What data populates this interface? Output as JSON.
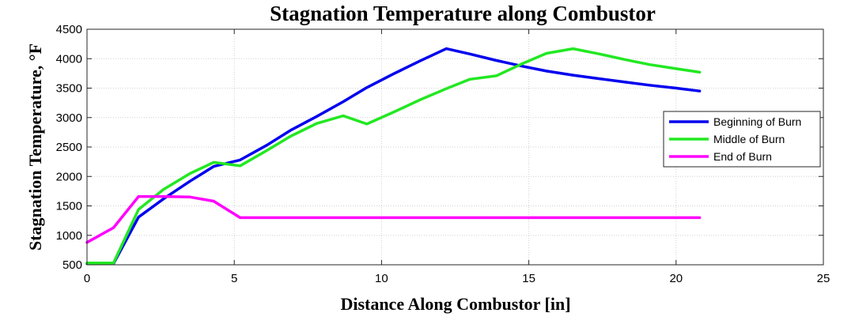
{
  "chart_data": {
    "type": "line",
    "title": "Stagnation Temperature along Combustor",
    "xlabel": "Distance Along Combustor [in]",
    "ylabel": "Stagnation Temperature, °F",
    "xlim": [
      0,
      25
    ],
    "ylim": [
      500,
      4500
    ],
    "xticks": [
      0,
      5,
      10,
      15,
      20,
      25
    ],
    "yticks": [
      500,
      1000,
      1500,
      2000,
      2500,
      3000,
      3500,
      4000,
      4500
    ],
    "grid": true,
    "legend_position": "right",
    "series": [
      {
        "name": "Beginning of Burn",
        "color": "#0000ee",
        "x": [
          0,
          0.9,
          1.75,
          2.6,
          3.5,
          4.3,
          5.2,
          6.1,
          6.9,
          7.8,
          8.7,
          9.5,
          10.4,
          11.3,
          12.2,
          13.0,
          13.9,
          14.8,
          15.6,
          16.5,
          17.4,
          18.3,
          19.1,
          20.0,
          20.8
        ],
        "y": [
          520,
          520,
          1310,
          1620,
          1920,
          2170,
          2280,
          2530,
          2780,
          3020,
          3270,
          3510,
          3740,
          3960,
          4170,
          4080,
          3970,
          3870,
          3790,
          3720,
          3660,
          3600,
          3550,
          3500,
          3450
        ]
      },
      {
        "name": "Middle of Burn",
        "color": "#22e822",
        "x": [
          0,
          0.9,
          1.75,
          2.6,
          3.5,
          4.3,
          5.2,
          6.1,
          6.9,
          7.8,
          8.7,
          9.5,
          10.4,
          11.3,
          12.2,
          13.0,
          13.9,
          14.8,
          15.6,
          16.5,
          17.4,
          18.3,
          19.1,
          20.0,
          20.8
        ],
        "y": [
          530,
          530,
          1440,
          1780,
          2050,
          2240,
          2180,
          2440,
          2680,
          2900,
          3030,
          2890,
          3090,
          3300,
          3490,
          3650,
          3710,
          3920,
          4090,
          4170,
          4080,
          3980,
          3900,
          3830,
          3770
        ]
      },
      {
        "name": "End of Burn",
        "color": "#ff00ff",
        "x": [
          0,
          0.9,
          1.75,
          2.6,
          3.5,
          4.3,
          5.2,
          6.1,
          6.9,
          7.8,
          8.7,
          9.5,
          10.4,
          11.3,
          12.2,
          13.0,
          13.9,
          14.8,
          15.6,
          16.5,
          17.4,
          18.3,
          19.1,
          20.0,
          20.8
        ],
        "y": [
          880,
          1130,
          1660,
          1660,
          1650,
          1580,
          1300,
          1300,
          1300,
          1300,
          1300,
          1300,
          1300,
          1300,
          1300,
          1300,
          1300,
          1300,
          1300,
          1300,
          1300,
          1300,
          1300,
          1300,
          1300
        ]
      }
    ]
  }
}
